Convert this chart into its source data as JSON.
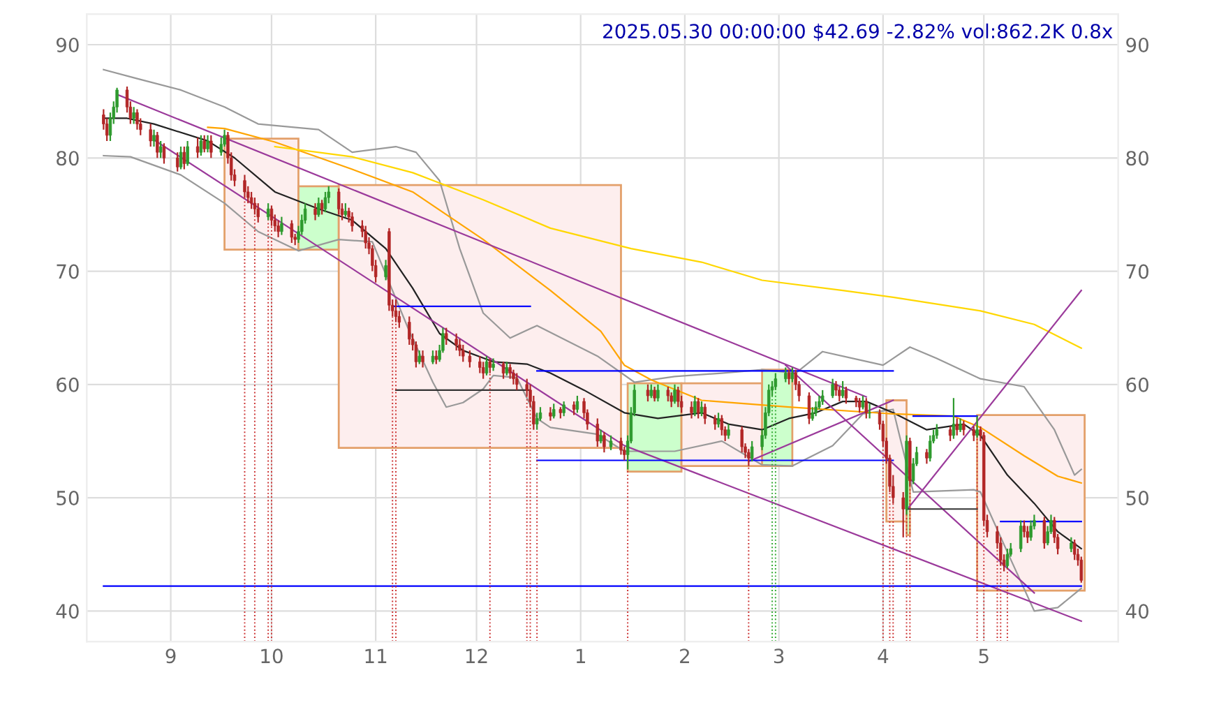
{
  "chart_data": {
    "type": "candlestick",
    "title": "2025.05.30 00:00:00 $42.69 -2.82% vol:862.2K 0.8x",
    "grid": true,
    "xlim": [
      "2024-08-07",
      "2025-06-10"
    ],
    "ylim": [
      37.3,
      92.7
    ],
    "yticks": [
      40,
      50,
      60,
      70,
      80,
      90
    ],
    "y2lim": [
      37.3,
      92.7
    ],
    "y2ticks": [
      40,
      50,
      60,
      70,
      80,
      90
    ],
    "xticks": [
      {
        "value": "2024-09-01",
        "label": "9"
      },
      {
        "value": "2024-10-01",
        "label": "10"
      },
      {
        "value": "2024-11-01",
        "label": "11"
      },
      {
        "value": "2024-12-01",
        "label": "12"
      },
      {
        "value": "2025-01-01",
        "label": "1"
      },
      {
        "value": "2025-02-01",
        "label": "2"
      },
      {
        "value": "2025-03-01",
        "label": "3"
      },
      {
        "value": "2025-04-01",
        "label": "4"
      },
      {
        "value": "2025-05-01",
        "label": "5"
      }
    ],
    "x": [
      "2024-08-12",
      "2024-08-13",
      "2024-08-14",
      "2024-08-15",
      "2024-08-16",
      "2024-08-19",
      "2024-08-20",
      "2024-08-21",
      "2024-08-22",
      "2024-08-23",
      "2024-08-26",
      "2024-08-27",
      "2024-08-28",
      "2024-08-29",
      "2024-08-30",
      "2024-09-03",
      "2024-09-04",
      "2024-09-05",
      "2024-09-06",
      "2024-09-09",
      "2024-09-10",
      "2024-09-11",
      "2024-09-12",
      "2024-09-13",
      "2024-09-16",
      "2024-09-17",
      "2024-09-18",
      "2024-09-19",
      "2024-09-20",
      "2024-09-23",
      "2024-09-24",
      "2024-09-25",
      "2024-09-26",
      "2024-09-27",
      "2024-09-30",
      "2024-10-01",
      "2024-10-02",
      "2024-10-03",
      "2024-10-04",
      "2024-10-07",
      "2024-10-08",
      "2024-10-09",
      "2024-10-10",
      "2024-10-11",
      "2024-10-14",
      "2024-10-15",
      "2024-10-16",
      "2024-10-17",
      "2024-10-18",
      "2024-10-21",
      "2024-10-22",
      "2024-10-23",
      "2024-10-24",
      "2024-10-25",
      "2024-10-28",
      "2024-10-29",
      "2024-10-30",
      "2024-10-31",
      "2024-11-01",
      "2024-11-04",
      "2024-11-05",
      "2024-11-06",
      "2024-11-07",
      "2024-11-08",
      "2024-11-11",
      "2024-11-12",
      "2024-11-13",
      "2024-11-14",
      "2024-11-15",
      "2024-11-18",
      "2024-11-19",
      "2024-11-20",
      "2024-11-21",
      "2024-11-22",
      "2024-11-25",
      "2024-11-26",
      "2024-11-27",
      "2024-11-29",
      "2024-12-02",
      "2024-12-03",
      "2024-12-04",
      "2024-12-05",
      "2024-12-06",
      "2024-12-09",
      "2024-12-10",
      "2024-12-11",
      "2024-12-12",
      "2024-12-13",
      "2024-12-16",
      "2024-12-17",
      "2024-12-18",
      "2024-12-19",
      "2024-12-20",
      "2024-12-23",
      "2024-12-24",
      "2024-12-26",
      "2024-12-27",
      "2024-12-30",
      "2024-12-31",
      "2025-01-02",
      "2025-01-03",
      "2025-01-06",
      "2025-01-07",
      "2025-01-08",
      "2025-01-10",
      "2025-01-13",
      "2025-01-14",
      "2025-01-15",
      "2025-01-16",
      "2025-01-17",
      "2025-01-21",
      "2025-01-22",
      "2025-01-23",
      "2025-01-24",
      "2025-01-27",
      "2025-01-28",
      "2025-01-29",
      "2025-01-30",
      "2025-01-31",
      "2025-02-03",
      "2025-02-04",
      "2025-02-05",
      "2025-02-06",
      "2025-02-07",
      "2025-02-10",
      "2025-02-11",
      "2025-02-12",
      "2025-02-13",
      "2025-02-14",
      "2025-02-18",
      "2025-02-19",
      "2025-02-20",
      "2025-02-21",
      "2025-02-24",
      "2025-02-25",
      "2025-02-26",
      "2025-02-27",
      "2025-02-28",
      "2025-03-03",
      "2025-03-04",
      "2025-03-05",
      "2025-03-06",
      "2025-03-07",
      "2025-03-10",
      "2025-03-11",
      "2025-03-12",
      "2025-03-13",
      "2025-03-14",
      "2025-03-17",
      "2025-03-18",
      "2025-03-19",
      "2025-03-20",
      "2025-03-21",
      "2025-03-24",
      "2025-03-25",
      "2025-03-26",
      "2025-03-27",
      "2025-03-28",
      "2025-03-31",
      "2025-04-01",
      "2025-04-02",
      "2025-04-03",
      "2025-04-04",
      "2025-04-07",
      "2025-04-08",
      "2025-04-09",
      "2025-04-10",
      "2025-04-11",
      "2025-04-14",
      "2025-04-15",
      "2025-04-16",
      "2025-04-17",
      "2025-04-21",
      "2025-04-22",
      "2025-04-23",
      "2025-04-24",
      "2025-04-25",
      "2025-04-28",
      "2025-04-29",
      "2025-04-30",
      "2025-05-01",
      "2025-05-02",
      "2025-05-05",
      "2025-05-06",
      "2025-05-07",
      "2025-05-08",
      "2025-05-09",
      "2025-05-12",
      "2025-05-13",
      "2025-05-14",
      "2025-05-15",
      "2025-05-16",
      "2025-05-19",
      "2025-05-20",
      "2025-05-21",
      "2025-05-22",
      "2025-05-23",
      "2025-05-27",
      "2025-05-28",
      "2025-05-29",
      "2025-05-30"
    ],
    "ohlc": [
      [
        83.8,
        84.3,
        82.5,
        83.0
      ],
      [
        83.0,
        83.5,
        81.5,
        82.0
      ],
      [
        82.0,
        84.0,
        81.5,
        83.5
      ],
      [
        83.5,
        85.0,
        83.0,
        84.5
      ],
      [
        84.5,
        86.2,
        84.0,
        86.0
      ],
      [
        86.0,
        86.3,
        84.0,
        84.5
      ],
      [
        84.5,
        85.0,
        83.0,
        83.5
      ],
      [
        83.5,
        84.5,
        83.0,
        84.0
      ],
      [
        84.0,
        84.3,
        82.5,
        83.0
      ],
      [
        83.0,
        83.5,
        82.0,
        82.5
      ],
      [
        82.5,
        83.0,
        81.0,
        81.5
      ],
      [
        81.5,
        82.5,
        81.0,
        82.0
      ],
      [
        82.0,
        82.3,
        80.0,
        80.5
      ],
      [
        80.5,
        81.5,
        80.0,
        81.0
      ],
      [
        81.0,
        81.3,
        79.5,
        80.0
      ],
      [
        80.0,
        80.5,
        78.8,
        79.2
      ],
      [
        79.2,
        81.0,
        79.0,
        80.5
      ],
      [
        80.5,
        81.0,
        79.0,
        79.5
      ],
      [
        79.5,
        81.5,
        79.3,
        81.0
      ],
      [
        81.0,
        81.8,
        80.0,
        80.5
      ],
      [
        80.5,
        82.0,
        80.2,
        81.5
      ],
      [
        81.5,
        82.0,
        80.5,
        80.8
      ],
      [
        80.8,
        82.0,
        80.5,
        81.5
      ],
      [
        81.5,
        82.0,
        80.0,
        80.5
      ],
      [
        80.5,
        81.8,
        80.2,
        81.2
      ],
      [
        81.2,
        82.5,
        81.0,
        82.0
      ],
      [
        82.0,
        82.3,
        79.5,
        80.0
      ],
      [
        80.0,
        80.5,
        78.0,
        78.5
      ],
      [
        78.5,
        79.0,
        77.5,
        78.0
      ],
      [
        78.0,
        78.5,
        76.5,
        77.0
      ],
      [
        77.0,
        77.5,
        76.0,
        76.5
      ],
      [
        76.5,
        77.0,
        75.5,
        76.0
      ],
      [
        76.0,
        76.5,
        75.0,
        75.5
      ],
      [
        75.5,
        76.0,
        74.3,
        74.8
      ],
      [
        74.8,
        76.0,
        74.5,
        75.5
      ],
      [
        75.5,
        75.8,
        74.0,
        74.5
      ],
      [
        74.5,
        75.0,
        73.5,
        74.0
      ],
      [
        74.0,
        74.5,
        73.0,
        73.5
      ],
      [
        73.5,
        74.8,
        73.2,
        74.2
      ],
      [
        74.2,
        74.5,
        72.5,
        73.0
      ],
      [
        73.0,
        73.3,
        72.3,
        72.8
      ],
      [
        72.8,
        74.0,
        72.5,
        73.5
      ],
      [
        73.5,
        75.0,
        73.2,
        74.5
      ],
      [
        74.5,
        76.0,
        74.2,
        75.5
      ],
      [
        75.5,
        76.0,
        74.5,
        75.0
      ],
      [
        75.0,
        76.5,
        74.8,
        76.0
      ],
      [
        76.0,
        76.3,
        75.0,
        75.5
      ],
      [
        75.5,
        77.0,
        75.2,
        76.5
      ],
      [
        76.5,
        77.5,
        76.0,
        77.0
      ],
      [
        77.0,
        77.3,
        75.0,
        75.5
      ],
      [
        75.5,
        76.0,
        74.5,
        75.0
      ],
      [
        75.0,
        76.0,
        74.8,
        75.3
      ],
      [
        75.3,
        75.6,
        74.3,
        74.8
      ],
      [
        74.8,
        75.2,
        73.5,
        74.0
      ],
      [
        74.0,
        74.5,
        73.0,
        73.5
      ],
      [
        73.5,
        74.0,
        72.0,
        72.5
      ],
      [
        72.5,
        73.0,
        71.5,
        72.0
      ],
      [
        72.0,
        72.3,
        70.0,
        70.5
      ],
      [
        70.5,
        71.0,
        69.0,
        69.5
      ],
      [
        69.5,
        71.0,
        69.2,
        70.5
      ],
      [
        73.5,
        73.8,
        66.5,
        67.0
      ],
      [
        67.0,
        67.5,
        66.0,
        66.5
      ],
      [
        66.5,
        67.5,
        65.5,
        66.0
      ],
      [
        66.0,
        66.5,
        65.0,
        65.5
      ],
      [
        65.5,
        66.0,
        63.5,
        64.0
      ],
      [
        64.0,
        64.5,
        63.0,
        63.5
      ],
      [
        63.5,
        63.8,
        61.5,
        62.0
      ],
      [
        62.0,
        63.0,
        61.8,
        62.5
      ],
      [
        62.5,
        63.0,
        61.5,
        62.0
      ],
      [
        62.0,
        63.0,
        61.8,
        62.5
      ],
      [
        62.5,
        63.0,
        61.8,
        62.2
      ],
      [
        62.2,
        63.5,
        62.0,
        63.0
      ],
      [
        63.0,
        65.0,
        62.8,
        64.5
      ],
      [
        64.5,
        65.0,
        63.5,
        64.0
      ],
      [
        64.0,
        64.5,
        63.0,
        63.5
      ],
      [
        63.5,
        64.0,
        62.5,
        63.0
      ],
      [
        63.0,
        63.5,
        62.0,
        62.5
      ],
      [
        62.5,
        63.0,
        61.5,
        62.0
      ],
      [
        62.0,
        62.5,
        61.0,
        61.5
      ],
      [
        61.5,
        62.0,
        60.5,
        61.0
      ],
      [
        61.0,
        62.5,
        60.8,
        62.0
      ],
      [
        62.0,
        62.3,
        61.0,
        61.5
      ],
      [
        61.5,
        62.3,
        61.2,
        61.8
      ],
      [
        61.8,
        62.0,
        60.5,
        61.0
      ],
      [
        61.0,
        62.0,
        60.8,
        61.5
      ],
      [
        61.5,
        61.8,
        60.5,
        61.0
      ],
      [
        61.0,
        61.3,
        60.0,
        60.5
      ],
      [
        60.5,
        61.0,
        59.5,
        60.0
      ],
      [
        60.0,
        60.5,
        59.0,
        59.5
      ],
      [
        59.5,
        60.0,
        58.0,
        58.5
      ],
      [
        58.5,
        59.0,
        56.0,
        56.5
      ],
      [
        56.5,
        57.5,
        56.0,
        57.0
      ],
      [
        57.0,
        58.0,
        56.8,
        57.5
      ],
      [
        57.5,
        58.0,
        56.8,
        57.2
      ],
      [
        57.2,
        58.3,
        57.0,
        57.8
      ],
      [
        57.8,
        58.0,
        57.0,
        57.5
      ],
      [
        57.5,
        58.5,
        57.2,
        58.2
      ],
      [
        58.2,
        58.5,
        57.3,
        57.8
      ],
      [
        57.8,
        59.0,
        57.5,
        58.5
      ],
      [
        58.5,
        58.8,
        57.0,
        57.5
      ],
      [
        57.5,
        57.8,
        56.0,
        56.5
      ],
      [
        56.5,
        57.0,
        54.5,
        55.0
      ],
      [
        55.0,
        56.0,
        54.8,
        55.5
      ],
      [
        55.5,
        55.8,
        54.0,
        54.5
      ],
      [
        54.5,
        55.5,
        54.2,
        55.0
      ],
      [
        55.0,
        55.3,
        53.8,
        54.2
      ],
      [
        54.2,
        54.5,
        53.3,
        53.8
      ],
      [
        53.8,
        55.5,
        52.5,
        55.0
      ],
      [
        55.0,
        58.0,
        54.8,
        57.5
      ],
      [
        57.5,
        60.0,
        57.2,
        59.5
      ],
      [
        59.5,
        60.0,
        58.5,
        59.0
      ],
      [
        59.0,
        60.0,
        58.8,
        59.5
      ],
      [
        59.5,
        59.8,
        58.5,
        58.8
      ],
      [
        58.8,
        60.0,
        58.5,
        59.5
      ],
      [
        59.5,
        59.8,
        58.5,
        59.0
      ],
      [
        59.0,
        59.3,
        58.0,
        58.5
      ],
      [
        58.5,
        60.0,
        58.3,
        59.5
      ],
      [
        59.5,
        59.8,
        58.0,
        58.5
      ],
      [
        58.5,
        59.0,
        57.5,
        58.0
      ],
      [
        58.0,
        58.5,
        57.0,
        57.5
      ],
      [
        57.5,
        59.0,
        57.2,
        58.5
      ],
      [
        58.5,
        58.8,
        57.0,
        57.5
      ],
      [
        57.5,
        58.5,
        57.2,
        58.0
      ],
      [
        58.0,
        58.3,
        56.5,
        57.0
      ],
      [
        57.0,
        57.3,
        56.0,
        56.5
      ],
      [
        56.5,
        57.5,
        56.2,
        57.0
      ],
      [
        57.0,
        57.3,
        55.5,
        56.0
      ],
      [
        56.0,
        56.3,
        55.0,
        55.5
      ],
      [
        55.5,
        56.5,
        55.2,
        56.0
      ],
      [
        56.0,
        56.3,
        54.0,
        54.5
      ],
      [
        54.5,
        54.8,
        53.5,
        54.0
      ],
      [
        54.0,
        54.3,
        52.8,
        53.5
      ],
      [
        53.5,
        55.0,
        53.2,
        54.5
      ],
      [
        54.5,
        56.0,
        54.2,
        55.5
      ],
      [
        55.5,
        58.0,
        55.2,
        57.5
      ],
      [
        57.5,
        60.0,
        57.2,
        59.5
      ],
      [
        59.5,
        60.3,
        59.0,
        59.8
      ],
      [
        59.8,
        61.0,
        59.5,
        60.5
      ],
      [
        60.5,
        61.5,
        60.2,
        61.0
      ],
      [
        61.0,
        61.3,
        60.0,
        60.5
      ],
      [
        60.5,
        61.5,
        60.2,
        61.0
      ],
      [
        61.0,
        61.3,
        59.5,
        60.0
      ],
      [
        60.0,
        60.3,
        58.5,
        59.0
      ],
      [
        59.0,
        59.3,
        56.5,
        57.0
      ],
      [
        57.0,
        58.0,
        56.8,
        57.5
      ],
      [
        57.5,
        58.5,
        57.2,
        58.0
      ],
      [
        58.0,
        59.0,
        57.8,
        58.5
      ],
      [
        58.5,
        59.5,
        58.2,
        59.0
      ],
      [
        59.0,
        60.5,
        58.8,
        60.0
      ],
      [
        60.0,
        60.3,
        59.0,
        59.5
      ],
      [
        59.5,
        59.8,
        58.5,
        59.0
      ],
      [
        59.0,
        60.3,
        58.8,
        59.5
      ],
      [
        59.5,
        59.8,
        58.3,
        58.8
      ],
      [
        58.8,
        59.0,
        58.0,
        58.5
      ],
      [
        58.5,
        58.8,
        57.5,
        58.0
      ],
      [
        58.0,
        59.0,
        57.8,
        58.5
      ],
      [
        58.5,
        58.8,
        57.0,
        57.5
      ],
      [
        57.5,
        58.3,
        57.0,
        57.5
      ],
      [
        57.5,
        57.8,
        56.0,
        56.5
      ],
      [
        56.5,
        56.8,
        54.5,
        55.0
      ],
      [
        55.0,
        55.3,
        53.0,
        53.5
      ],
      [
        53.5,
        53.8,
        50.5,
        51.0
      ],
      [
        51.0,
        52.0,
        49.5,
        50.0
      ],
      [
        50.0,
        50.5,
        46.5,
        49.0
      ],
      [
        49.0,
        55.5,
        48.5,
        55.0
      ],
      [
        55.0,
        55.3,
        51.0,
        51.5
      ],
      [
        51.5,
        53.5,
        51.2,
        53.0
      ],
      [
        53.0,
        54.5,
        52.8,
        54.0
      ],
      [
        54.0,
        54.3,
        53.0,
        53.5
      ],
      [
        53.5,
        55.5,
        53.2,
        55.0
      ],
      [
        55.0,
        56.0,
        54.8,
        55.5
      ],
      [
        55.5,
        56.5,
        55.2,
        56.0
      ],
      [
        56.0,
        56.3,
        55.0,
        55.5
      ],
      [
        55.5,
        58.8,
        55.2,
        56.5
      ],
      [
        56.5,
        57.0,
        55.5,
        56.0
      ],
      [
        56.0,
        57.0,
        55.8,
        56.5
      ],
      [
        56.5,
        56.8,
        55.5,
        56.0
      ],
      [
        56.0,
        56.3,
        55.0,
        55.5
      ],
      [
        55.5,
        57.2,
        55.3,
        56.0
      ],
      [
        56.0,
        56.3,
        55.0,
        55.5
      ],
      [
        55.5,
        55.8,
        47.5,
        48.0
      ],
      [
        48.0,
        48.5,
        46.5,
        47.0
      ],
      [
        47.0,
        47.5,
        45.5,
        46.0
      ],
      [
        46.0,
        46.5,
        44.0,
        44.5
      ],
      [
        44.5,
        45.0,
        43.5,
        44.0
      ],
      [
        44.0,
        45.5,
        43.8,
        45.0
      ],
      [
        45.0,
        46.0,
        44.8,
        45.5
      ],
      [
        45.5,
        48.0,
        45.2,
        47.5
      ],
      [
        47.5,
        48.0,
        46.5,
        47.0
      ],
      [
        47.0,
        47.5,
        46.0,
        46.5
      ],
      [
        46.5,
        48.0,
        46.2,
        47.5
      ],
      [
        47.5,
        48.5,
        47.2,
        48.0
      ],
      [
        48.0,
        48.3,
        45.5,
        46.0
      ],
      [
        46.0,
        47.5,
        45.8,
        47.0
      ],
      [
        47.0,
        48.5,
        46.8,
        48.0
      ],
      [
        48.0,
        48.3,
        46.0,
        46.5
      ],
      [
        46.5,
        46.8,
        45.0,
        45.5
      ],
      [
        45.5,
        46.5,
        45.2,
        46.0
      ],
      [
        46.0,
        46.3,
        44.5,
        45.0
      ],
      [
        45.0,
        45.5,
        44.0,
        44.5
      ],
      [
        44.5,
        44.8,
        42.5,
        42.7
      ]
    ],
    "series": [
      {
        "type": "area",
        "color": "#fdeeee",
        "x": [
          "2024-09-17",
          "2024-09-17",
          "2024-10-09",
          "2024-10-09"
        ],
        "values": [
          71.9,
          81.7,
          81.7,
          71.9
        ]
      },
      {
        "type": "area",
        "color": "#ccffcc",
        "x": [
          "2024-10-09",
          "2024-10-09",
          "2024-10-21",
          "2024-10-21"
        ],
        "values": [
          71.9,
          77.5,
          77.5,
          71.9
        ]
      },
      {
        "type": "area",
        "color": "#fdeeee",
        "x": [
          "2024-10-21",
          "2024-10-21",
          "2025-01-13",
          "2025-01-13"
        ],
        "values": [
          54.4,
          77.6,
          77.6,
          54.4
        ]
      },
      {
        "type": "area",
        "color": "#ccffcc",
        "x": [
          "2025-01-15",
          "2025-01-15",
          "2025-01-31",
          "2025-01-31"
        ],
        "values": [
          52.3,
          60.1,
          60.1,
          52.3
        ]
      },
      {
        "type": "area",
        "color": "#fdeeee",
        "x": [
          "2025-01-31",
          "2025-01-31",
          "2025-02-24",
          "2025-02-24"
        ],
        "values": [
          52.8,
          60.1,
          60.1,
          52.8
        ]
      },
      {
        "type": "area",
        "color": "#ccffcc",
        "x": [
          "2025-02-24",
          "2025-02-24",
          "2025-03-05",
          "2025-03-05"
        ],
        "values": [
          52.8,
          61.3,
          61.3,
          52.8
        ]
      },
      {
        "type": "area",
        "color": "#fdeeee",
        "x": [
          "2025-04-02",
          "2025-04-02",
          "2025-04-08",
          "2025-04-08"
        ],
        "values": [
          47.9,
          58.6,
          58.6,
          47.9
        ]
      },
      {
        "type": "area",
        "color": "#ccffcc",
        "x": [
          "2025-04-08",
          "2025-04-08",
          "2025-04-09",
          "2025-04-09"
        ],
        "values": [
          46.7,
          54.8,
          54.8,
          46.7
        ]
      },
      {
        "type": "area",
        "color": "#fdeeee",
        "x": [
          "2025-04-29",
          "2025-04-29",
          "2025-05-31",
          "2025-05-31"
        ],
        "values": [
          41.8,
          57.3,
          57.3,
          41.8
        ]
      },
      {
        "type": "line",
        "color": "#999999",
        "x": [
          "2024-08-12",
          "2024-08-22",
          "2024-09-04",
          "2024-09-17",
          "2024-09-27",
          "2024-10-15",
          "2024-10-25",
          "2024-11-07",
          "2024-11-13",
          "2024-11-20",
          "2024-11-26",
          "2024-12-03",
          "2024-12-11",
          "2024-12-19",
          "2025-01-06",
          "2025-01-17",
          "2025-01-29",
          "2025-02-12",
          "2025-02-24",
          "2025-03-06",
          "2025-03-14",
          "2025-04-01",
          "2025-04-09",
          "2025-04-17",
          "2025-04-30",
          "2025-05-13",
          "2025-05-22",
          "2025-05-28",
          "2025-05-30"
        ],
        "values": [
          87.8,
          87,
          86,
          84.5,
          83,
          82.5,
          80.5,
          81,
          80.5,
          78,
          72,
          66.3,
          64.1,
          65.2,
          62.5,
          60.2,
          60.7,
          61,
          61.3,
          61,
          62.9,
          61.7,
          63.3,
          62.3,
          60.5,
          59.8,
          56,
          52,
          52.5
        ]
      },
      {
        "type": "line",
        "color": "#999999",
        "x": [
          "2024-08-12",
          "2024-08-20",
          "2024-09-04",
          "2024-09-17",
          "2024-09-27",
          "2024-10-09",
          "2024-10-21",
          "2024-10-31",
          "2024-11-11",
          "2024-11-18",
          "2024-11-22",
          "2024-11-27",
          "2024-12-03",
          "2024-12-06",
          "2024-12-13",
          "2024-12-19",
          "2024-12-23",
          "2025-01-06",
          "2025-01-14",
          "2025-01-29",
          "2025-02-12",
          "2025-02-24",
          "2025-03-05",
          "2025-03-17",
          "2025-03-26",
          "2025-04-04",
          "2025-04-10",
          "2025-04-28",
          "2025-04-30",
          "2025-05-08",
          "2025-05-16",
          "2025-05-23",
          "2025-05-30"
        ],
        "values": [
          80.2,
          80.1,
          78.5,
          76,
          73.5,
          71.8,
          72.8,
          72.6,
          64.7,
          60.2,
          58,
          58.4,
          59.6,
          60.8,
          60.6,
          57,
          56.2,
          55.6,
          54.1,
          54.1,
          55,
          52.9,
          52.8,
          54.6,
          57.4,
          57.8,
          50.5,
          50.7,
          50.5,
          45.2,
          40,
          40.3,
          42
        ]
      },
      {
        "type": "line",
        "color": "#222222",
        "x": [
          "2024-08-12",
          "2024-08-19",
          "2024-08-27",
          "2024-09-12",
          "2024-09-20",
          "2024-10-02",
          "2024-10-15",
          "2024-10-25",
          "2024-11-04",
          "2024-11-12",
          "2024-11-20",
          "2024-11-27",
          "2024-12-06",
          "2024-12-16",
          "2024-12-23",
          "2025-01-02",
          "2025-01-14",
          "2025-01-24",
          "2025-02-06",
          "2025-02-14",
          "2025-02-24",
          "2025-03-04",
          "2025-03-12",
          "2025-03-20",
          "2025-03-27",
          "2025-04-04",
          "2025-04-14",
          "2025-04-25",
          "2025-04-30",
          "2025-05-08",
          "2025-05-16",
          "2025-05-23",
          "2025-05-30"
        ],
        "values": [
          83.5,
          83.5,
          83,
          81.5,
          80,
          77,
          75.5,
          74.5,
          72,
          68.5,
          64.5,
          63,
          62,
          61.8,
          61,
          59.5,
          57.5,
          57,
          57.5,
          56.5,
          56,
          57,
          57.5,
          58.5,
          58.5,
          57.5,
          56,
          56.5,
          55.5,
          52,
          49.5,
          47,
          45.5
        ]
      },
      {
        "type": "line",
        "color": "#ffa500",
        "x": [
          "2024-09-12",
          "2024-09-17",
          "2024-10-02",
          "2024-10-25",
          "2024-11-12",
          "2024-12-03",
          "2024-12-23",
          "2025-01-07",
          "2025-01-14",
          "2025-01-22",
          "2025-02-06",
          "2025-03-04",
          "2025-04-04",
          "2025-04-22",
          "2025-04-30",
          "2025-05-13",
          "2025-05-23",
          "2025-05-30"
        ],
        "values": [
          82.7,
          82.6,
          81.4,
          79,
          77,
          72.8,
          68.3,
          64.7,
          61.7,
          60.4,
          58.6,
          58,
          57.4,
          57.2,
          56.2,
          53.7,
          51.9,
          51.3
        ]
      },
      {
        "type": "line",
        "color": "#ffd700",
        "x": [
          "2024-10-02",
          "2024-10-25",
          "2024-11-12",
          "2024-12-03",
          "2024-12-23",
          "2025-01-16",
          "2025-02-06",
          "2025-02-24",
          "2025-03-20",
          "2025-04-04",
          "2025-04-30",
          "2025-05-16",
          "2025-05-30"
        ],
        "values": [
          81,
          80.1,
          78.7,
          76.3,
          73.8,
          72,
          70.8,
          69.2,
          68.3,
          67.7,
          66.5,
          65.3,
          63.2
        ]
      },
      {
        "type": "line",
        "color": "#9b3a9b",
        "x": [
          "2024-08-16",
          "2025-03-27"
        ],
        "values": [
          85.6,
          58.9
        ]
      },
      {
        "type": "line",
        "color": "#9b3a9b",
        "x": [
          "2024-08-27",
          "2025-01-14",
          "2025-05-30"
        ],
        "values": [
          81.6,
          54.6,
          39.1
        ]
      },
      {
        "type": "line",
        "color": "#9b3a9b",
        "x": [
          "2025-03-03",
          "2025-05-16"
        ],
        "values": [
          61.7,
          41.6
        ]
      },
      {
        "type": "line",
        "color": "#9b3a9b",
        "x": [
          "2025-02-20",
          "2025-04-04"
        ],
        "values": [
          53.2,
          58.6
        ]
      },
      {
        "type": "line",
        "color": "#9b3a9b",
        "x": [
          "2025-04-08",
          "2025-05-30"
        ],
        "values": [
          48.9,
          68.3
        ]
      },
      {
        "type": "line",
        "color": "#0000ff",
        "x": [
          "2024-11-06",
          "2024-12-17"
        ],
        "values": [
          66.9,
          66.9
        ]
      },
      {
        "type": "line",
        "color": "#333333",
        "x": [
          "2024-11-07",
          "2024-12-17"
        ],
        "values": [
          59.5,
          59.5
        ]
      },
      {
        "type": "line",
        "color": "#0000ff",
        "x": [
          "2024-12-19",
          "2025-04-04"
        ],
        "values": [
          61.2,
          61.2
        ]
      },
      {
        "type": "line",
        "color": "#0000ff",
        "x": [
          "2024-12-19",
          "2025-04-04"
        ],
        "values": [
          53.3,
          53.3
        ]
      },
      {
        "type": "line",
        "color": "#0000ff",
        "x": [
          "2025-04-10",
          "2025-04-29"
        ],
        "values": [
          57.2,
          57.2
        ]
      },
      {
        "type": "line",
        "color": "#333333",
        "x": [
          "2025-04-08",
          "2025-04-29"
        ],
        "values": [
          49,
          49
        ]
      },
      {
        "type": "line",
        "color": "#0000ff",
        "x": [
          "2025-05-06",
          "2025-05-30"
        ],
        "values": [
          47.9,
          47.9
        ]
      },
      {
        "type": "line",
        "color": "#0000ff",
        "x": [
          "2024-08-12",
          "2025-05-30"
        ],
        "values": [
          42.2,
          42.2
        ]
      }
    ],
    "ref_lines": [
      {
        "axis": "x",
        "value": "2024-09-23",
        "color": "#cc3333"
      },
      {
        "axis": "x",
        "value": "2024-09-26",
        "color": "#cc3333"
      },
      {
        "axis": "x",
        "value": "2024-09-30",
        "color": "#cc3333"
      },
      {
        "axis": "x",
        "value": "2024-10-01",
        "color": "#cc3333"
      },
      {
        "axis": "x",
        "value": "2024-11-06",
        "color": "#cc3333"
      },
      {
        "axis": "x",
        "value": "2024-11-07",
        "color": "#cc3333"
      },
      {
        "axis": "x",
        "value": "2024-12-05",
        "color": "#cc3333"
      },
      {
        "axis": "x",
        "value": "2024-12-16",
        "color": "#cc3333"
      },
      {
        "axis": "x",
        "value": "2024-12-17",
        "color": "#cc3333"
      },
      {
        "axis": "x",
        "value": "2024-12-19",
        "color": "#cc3333"
      },
      {
        "axis": "x",
        "value": "2025-01-15",
        "color": "#cc3333"
      },
      {
        "axis": "x",
        "value": "2025-02-20",
        "color": "#cc3333"
      },
      {
        "axis": "x",
        "value": "2025-02-27",
        "color": "#33aa33"
      },
      {
        "axis": "x",
        "value": "2025-02-28",
        "color": "#33aa33"
      },
      {
        "axis": "x",
        "value": "2025-04-01",
        "color": "#cc3333"
      },
      {
        "axis": "x",
        "value": "2025-04-03",
        "color": "#cc3333"
      },
      {
        "axis": "x",
        "value": "2025-04-04",
        "color": "#cc3333"
      },
      {
        "axis": "x",
        "value": "2025-04-08",
        "color": "#cc3333"
      },
      {
        "axis": "x",
        "value": "2025-04-09",
        "color": "#cc3333"
      },
      {
        "axis": "x",
        "value": "2025-04-29",
        "color": "#cc3333"
      },
      {
        "axis": "x",
        "value": "2025-05-01",
        "color": "#cc3333"
      },
      {
        "axis": "x",
        "value": "2025-05-05",
        "color": "#cc3333"
      },
      {
        "axis": "x",
        "value": "2025-05-06",
        "color": "#cc3333"
      },
      {
        "axis": "x",
        "value": "2025-05-08",
        "color": "#cc3333"
      }
    ],
    "line_style": "solid",
    "marker": "none"
  }
}
